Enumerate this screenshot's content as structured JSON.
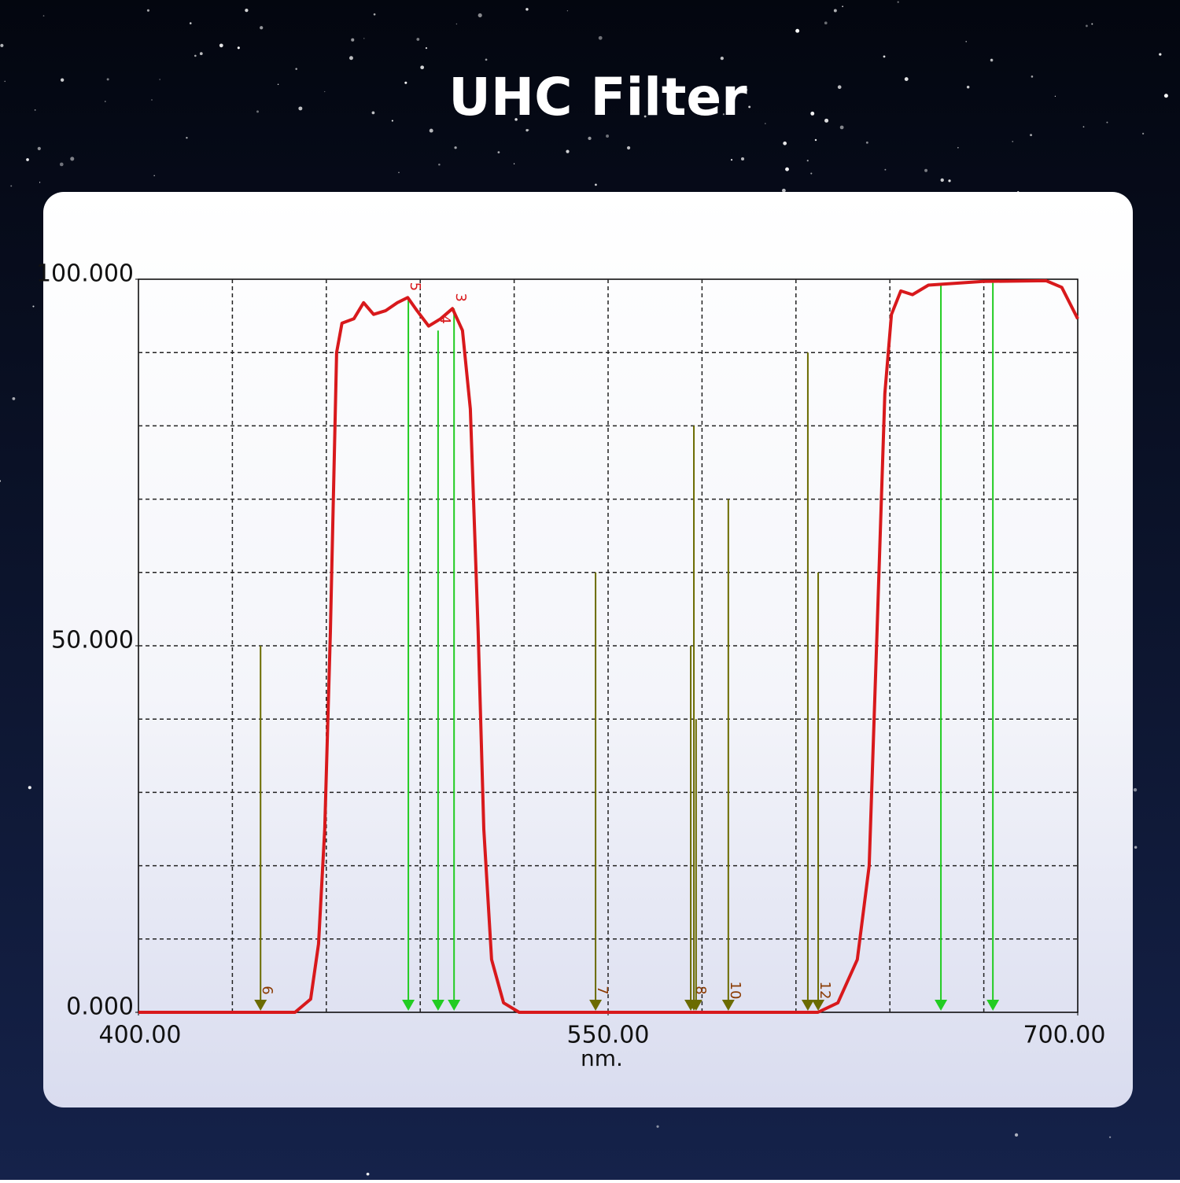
{
  "chart_data": {
    "type": "line",
    "title": "UHC Filter",
    "xlabel": "nm.",
    "color": "#d8191c",
    "x": [
      400,
      450,
      455,
      457.5,
      459.5,
      461.3,
      463.3,
      465,
      468.8,
      471.9,
      475.1,
      478.9,
      482.7,
      486,
      489,
      492.7,
      496.5,
      500.3,
      503.5,
      506,
      508.5,
      510.3,
      512.8,
      516.6,
      521.6,
      617,
      623.4,
      629.6,
      633.4,
      635.9,
      638.4,
      640.5,
      643.5,
      647.2,
      652.3,
      669.8,
      689.9,
      694.9,
      700
    ],
    "values": [
      0,
      0,
      1.8,
      9.3,
      25,
      52,
      90,
      94,
      94.6,
      96.8,
      95.2,
      95.7,
      96.8,
      97.5,
      95.7,
      93.6,
      94.6,
      96,
      93,
      82.3,
      52,
      25,
      7.2,
      1.3,
      0,
      0,
      1.3,
      7.2,
      20,
      52,
      84.4,
      95.2,
      98.4,
      97.9,
      99.2,
      99.7,
      99.8,
      98.9,
      94.6
    ],
    "xlim": [
      400,
      700
    ],
    "ylim": [
      0,
      100
    ],
    "xticks": [
      {
        "value": 400,
        "label": "400.00"
      },
      {
        "value": 550,
        "label": "550.00"
      },
      {
        "value": 700,
        "label": "700.00"
      }
    ],
    "yticks": [
      {
        "value": 0,
        "label": "0.000"
      },
      {
        "value": 50,
        "label": "50.000"
      },
      {
        "value": 100,
        "label": "100.000"
      }
    ],
    "grid": true,
    "markers": [
      {
        "label": "6",
        "x": 439,
        "y": 50,
        "color": "#6b6b00"
      },
      {
        "label": "5",
        "x": 486.2,
        "y": 97.5,
        "color": "#22cc22"
      },
      {
        "label": "4",
        "x": 495.7,
        "y": 93,
        "color": "#22cc22"
      },
      {
        "label": "3",
        "x": 500.8,
        "y": 96,
        "color": "#22cc22"
      },
      {
        "label": "7",
        "x": 546,
        "y": 60,
        "color": "#6b6b00"
      },
      {
        "label": null,
        "x": 576.4,
        "y": 50,
        "color": "#6b6b00"
      },
      {
        "label": "8",
        "x": 577.4,
        "y": 80,
        "color": "#6b6b00"
      },
      {
        "label": null,
        "x": 578.1,
        "y": 40,
        "color": "#6b6b00"
      },
      {
        "label": "10",
        "x": 588.4,
        "y": 70,
        "color": "#6b6b00"
      },
      {
        "label": null,
        "x": 613.8,
        "y": 90,
        "color": "#6b6b00"
      },
      {
        "label": "12",
        "x": 617.1,
        "y": 60,
        "color": "#6b6b00"
      },
      {
        "label": null,
        "x": 656.3,
        "y": 99.2,
        "color": "#22cc22"
      },
      {
        "label": null,
        "x": 672.9,
        "y": 99.5,
        "color": "#22cc22"
      }
    ]
  }
}
